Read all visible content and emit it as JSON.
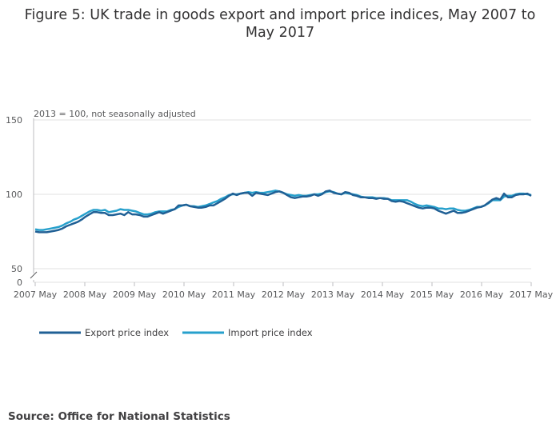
{
  "title": "Figure 5: UK trade in goods export and import price indices, May 2007 to May 2017",
  "source": "Source: Office for National Statistics",
  "chart_data": {
    "type": "line",
    "subtitle": "2013 = 100, not seasonally adjusted",
    "x_ticks": [
      "2007 May",
      "2008 May",
      "2009 May",
      "2010 May",
      "2011 May",
      "2012 May",
      "2013 May",
      "2014 May",
      "2015 May",
      "2016 May",
      "2017 May"
    ],
    "y_ticks": [
      0,
      50,
      100,
      150
    ],
    "y_axis_break": "between 0 and 50",
    "ylim": [
      50,
      150
    ],
    "grid": true,
    "legend_position": "bottom-left",
    "x_start": "2007 May",
    "x_step": "1 month",
    "series": [
      {
        "name": "Export price index",
        "color": "#206095",
        "values": [
          75.0,
          74.5,
          74.5,
          74.5,
          75.0,
          75.5,
          76.0,
          77.0,
          78.5,
          79.5,
          80.5,
          81.5,
          83.0,
          85.0,
          86.5,
          88.0,
          88.0,
          87.5,
          87.5,
          86.0,
          86.0,
          86.5,
          87.0,
          86.0,
          88.0,
          86.5,
          86.5,
          86.0,
          85.0,
          85.0,
          86.0,
          87.0,
          88.0,
          87.0,
          88.0,
          89.0,
          90.0,
          92.5,
          92.5,
          93.0,
          92.0,
          91.5,
          91.0,
          91.0,
          91.5,
          92.5,
          92.5,
          94.0,
          95.5,
          97.0,
          99.0,
          100.5,
          99.5,
          100.5,
          101.0,
          101.0,
          99.0,
          101.0,
          100.5,
          100.0,
          99.5,
          100.5,
          101.5,
          102.0,
          101.0,
          99.5,
          98.0,
          97.5,
          98.0,
          98.5,
          98.5,
          99.0,
          100.0,
          99.0,
          100.0,
          102.0,
          102.5,
          101.0,
          100.5,
          100.0,
          101.5,
          101.0,
          99.5,
          99.0,
          98.0,
          98.0,
          97.5,
          97.5,
          97.0,
          97.5,
          97.0,
          97.0,
          95.5,
          95.0,
          95.5,
          95.0,
          94.0,
          93.0,
          92.0,
          91.0,
          90.5,
          91.0,
          91.0,
          90.5,
          89.0,
          88.0,
          87.0,
          88.0,
          89.0,
          87.5,
          87.5,
          88.0,
          89.0,
          90.0,
          91.0,
          91.5,
          92.5,
          94.5,
          96.5,
          97.5,
          96.5,
          100.5,
          98.0,
          98.0,
          99.5,
          100.0,
          100.0,
          100.5,
          99.0
        ]
      },
      {
        "name": "Import price index",
        "color": "#27a0cc",
        "values": [
          76.5,
          76.0,
          76.0,
          76.5,
          77.0,
          77.5,
          78.0,
          79.0,
          80.5,
          81.5,
          83.0,
          84.0,
          85.5,
          87.0,
          88.5,
          89.5,
          89.5,
          89.0,
          89.5,
          88.0,
          88.5,
          89.0,
          90.0,
          89.5,
          89.5,
          89.0,
          88.5,
          87.5,
          86.5,
          86.5,
          87.0,
          88.0,
          88.5,
          88.5,
          88.5,
          89.5,
          90.0,
          91.5,
          92.5,
          93.0,
          92.0,
          92.0,
          91.5,
          92.0,
          92.5,
          93.5,
          94.5,
          95.5,
          97.0,
          98.0,
          99.5,
          100.0,
          100.0,
          100.5,
          101.0,
          101.5,
          101.0,
          101.5,
          101.0,
          101.0,
          101.5,
          102.0,
          102.5,
          102.0,
          101.0,
          100.0,
          99.5,
          99.0,
          99.5,
          99.0,
          99.0,
          99.5,
          100.0,
          100.0,
          100.5,
          101.5,
          102.0,
          101.5,
          100.5,
          100.0,
          101.0,
          100.5,
          100.0,
          99.5,
          98.5,
          98.0,
          98.0,
          98.0,
          97.5,
          97.5,
          97.5,
          97.0,
          96.0,
          96.0,
          96.0,
          96.0,
          96.0,
          95.0,
          93.5,
          92.5,
          92.0,
          92.5,
          92.0,
          91.5,
          90.5,
          90.5,
          90.0,
          90.5,
          90.5,
          89.5,
          89.0,
          89.0,
          89.5,
          90.5,
          91.5,
          91.5,
          92.5,
          94.0,
          96.0,
          96.0,
          96.0,
          98.5,
          99.0,
          99.0,
          100.0,
          100.5,
          100.5,
          100.0,
          99.5
        ]
      }
    ]
  }
}
